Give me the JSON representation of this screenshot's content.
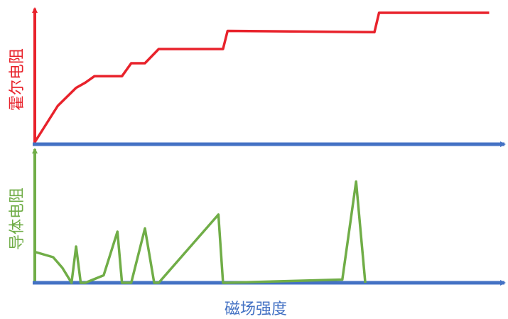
{
  "chart_data": [
    {
      "type": "line",
      "ylabel": "霍尔电阻",
      "xlabel": "",
      "color": "#e8222b",
      "axis_color": "#4472c4",
      "xlim": [
        0,
        1
      ],
      "ylim": [
        0,
        1
      ],
      "series": [
        {
          "x": [
            0.0,
            0.05,
            0.09,
            0.11,
            0.13,
            0.19,
            0.21,
            0.24,
            0.27,
            0.41,
            0.42,
            0.74,
            0.75,
            0.99
          ],
          "y": [
            0.0,
            0.28,
            0.42,
            0.46,
            0.51,
            0.51,
            0.61,
            0.61,
            0.72,
            0.72,
            0.86,
            0.85,
            1.0,
            1.0
          ]
        }
      ]
    },
    {
      "type": "line",
      "ylabel": "导体电阻",
      "xlabel": "磁场强度",
      "color": "#70ad47",
      "axis_color": "#4472c4",
      "xlim": [
        0,
        1
      ],
      "ylim": [
        0,
        1
      ],
      "series": [
        {
          "x": [
            0.0,
            0.04,
            0.06,
            0.08,
            0.09,
            0.1,
            0.11,
            0.15,
            0.18,
            0.19,
            0.21,
            0.24,
            0.26,
            0.27,
            0.4,
            0.41,
            0.42,
            0.67,
            0.7,
            0.72
          ],
          "y": [
            0.29,
            0.24,
            0.14,
            0.0,
            0.34,
            0.0,
            0.0,
            0.07,
            0.48,
            0.0,
            0.0,
            0.51,
            0.0,
            0.0,
            0.64,
            0.0,
            0.0,
            0.03,
            0.95,
            0.0
          ]
        }
      ]
    }
  ]
}
